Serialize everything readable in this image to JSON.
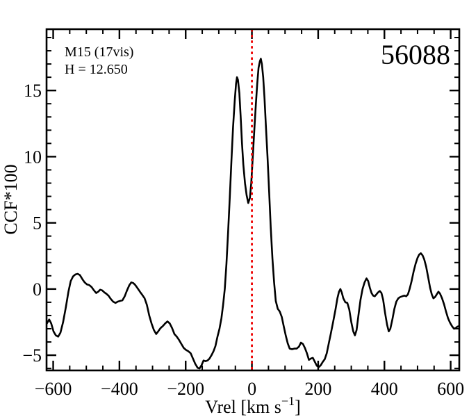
{
  "chart_data": {
    "type": "line",
    "title": "56088",
    "annotations": [
      "M15 (17vis)",
      "H = 12.650"
    ],
    "xlabel": {
      "main": "Vrel [km s",
      "sup": "−1",
      "end": "]"
    },
    "ylabel": "CCF*100",
    "x_range": [
      -620,
      626
    ],
    "y_range": [
      -6.15,
      19.63
    ],
    "x_major_ticks": [
      -600,
      -400,
      -200,
      0,
      200,
      400,
      600
    ],
    "x_tick_labels": [
      "−600",
      "−400",
      "−200",
      "0",
      "200",
      "400",
      "600"
    ],
    "x_minor_step": 50,
    "y_major_ticks": [
      -5,
      0,
      5,
      10,
      15
    ],
    "y_tick_labels": [
      "−5",
      "0",
      "5",
      "10",
      "15"
    ],
    "y_minor_step": 1,
    "grid": false,
    "legend": "none",
    "ref_line": {
      "x": 0,
      "style": "dotted",
      "color": "#ee0000"
    },
    "colors": {
      "curve": "#000000",
      "frame": "#000000",
      "background": "#ffffff"
    },
    "series": [
      {
        "name": "ccf",
        "points": [
          [
            -619,
            -2.6
          ],
          [
            -612,
            -2.3
          ],
          [
            -606,
            -2.6
          ],
          [
            -599,
            -3.2
          ],
          [
            -592,
            -3.5
          ],
          [
            -585,
            -3.6
          ],
          [
            -578,
            -3.3
          ],
          [
            -570,
            -2.5
          ],
          [
            -562,
            -1.4
          ],
          [
            -554,
            -0.2
          ],
          [
            -547,
            0.6
          ],
          [
            -540,
            0.95
          ],
          [
            -533,
            1.1
          ],
          [
            -526,
            1.15
          ],
          [
            -519,
            1.05
          ],
          [
            -512,
            0.75
          ],
          [
            -505,
            0.5
          ],
          [
            -498,
            0.35
          ],
          [
            -491,
            0.3
          ],
          [
            -484,
            0.15
          ],
          [
            -477,
            -0.1
          ],
          [
            -470,
            -0.3
          ],
          [
            -464,
            -0.2
          ],
          [
            -458,
            -0.05
          ],
          [
            -452,
            -0.1
          ],
          [
            -446,
            -0.25
          ],
          [
            -440,
            -0.35
          ],
          [
            -433,
            -0.5
          ],
          [
            -426,
            -0.75
          ],
          [
            -419,
            -0.95
          ],
          [
            -412,
            -1.05
          ],
          [
            -405,
            -0.95
          ],
          [
            -398,
            -0.9
          ],
          [
            -391,
            -0.85
          ],
          [
            -384,
            -0.55
          ],
          [
            -377,
            -0.1
          ],
          [
            -370,
            0.3
          ],
          [
            -364,
            0.5
          ],
          [
            -358,
            0.45
          ],
          [
            -352,
            0.3
          ],
          [
            -345,
            0.05
          ],
          [
            -338,
            -0.2
          ],
          [
            -331,
            -0.45
          ],
          [
            -324,
            -0.7
          ],
          [
            -317,
            -1.2
          ],
          [
            -310,
            -2.0
          ],
          [
            -303,
            -2.6
          ],
          [
            -296,
            -3.1
          ],
          [
            -289,
            -3.4
          ],
          [
            -283,
            -3.2
          ],
          [
            -276,
            -2.95
          ],
          [
            -269,
            -2.8
          ],
          [
            -262,
            -2.6
          ],
          [
            -255,
            -2.45
          ],
          [
            -248,
            -2.6
          ],
          [
            -241,
            -2.95
          ],
          [
            -234,
            -3.4
          ],
          [
            -227,
            -3.6
          ],
          [
            -220,
            -3.85
          ],
          [
            -213,
            -4.15
          ],
          [
            -206,
            -4.45
          ],
          [
            -199,
            -4.6
          ],
          [
            -192,
            -4.7
          ],
          [
            -185,
            -4.85
          ],
          [
            -178,
            -5.25
          ],
          [
            -171,
            -5.65
          ],
          [
            -164,
            -5.95
          ],
          [
            -158,
            -6.0
          ],
          [
            -152,
            -5.75
          ],
          [
            -146,
            -5.4
          ],
          [
            -140,
            -5.45
          ],
          [
            -134,
            -5.4
          ],
          [
            -128,
            -5.25
          ],
          [
            -122,
            -5.0
          ],
          [
            -116,
            -4.7
          ],
          [
            -110,
            -4.3
          ],
          [
            -104,
            -3.6
          ],
          [
            -98,
            -3.0
          ],
          [
            -92,
            -2.2
          ],
          [
            -87,
            -1.2
          ],
          [
            -82,
            0.0
          ],
          [
            -77,
            1.9
          ],
          [
            -72,
            4.2
          ],
          [
            -67,
            6.8
          ],
          [
            -62,
            9.6
          ],
          [
            -57,
            12.2
          ],
          [
            -52,
            14.2
          ],
          [
            -48,
            15.5
          ],
          [
            -45,
            16.0
          ],
          [
            -42,
            15.8
          ],
          [
            -38,
            14.8
          ],
          [
            -34,
            13.0
          ],
          [
            -30,
            11.0
          ],
          [
            -26,
            9.4
          ],
          [
            -21,
            8.0
          ],
          [
            -16,
            7.1
          ],
          [
            -11,
            6.5
          ],
          [
            -6,
            6.9
          ],
          [
            -2,
            8.0
          ],
          [
            2,
            9.7
          ],
          [
            7,
            11.9
          ],
          [
            12,
            14.0
          ],
          [
            16,
            15.5
          ],
          [
            20,
            16.7
          ],
          [
            24,
            17.2
          ],
          [
            27,
            17.4
          ],
          [
            30,
            17.0
          ],
          [
            34,
            16.0
          ],
          [
            38,
            14.4
          ],
          [
            42,
            12.4
          ],
          [
            47,
            10.0
          ],
          [
            52,
            7.3
          ],
          [
            57,
            4.6
          ],
          [
            62,
            2.3
          ],
          [
            67,
            0.5
          ],
          [
            72,
            -0.9
          ],
          [
            78,
            -1.5
          ],
          [
            84,
            -1.7
          ],
          [
            90,
            -2.1
          ],
          [
            96,
            -2.8
          ],
          [
            102,
            -3.5
          ],
          [
            108,
            -4.1
          ],
          [
            114,
            -4.5
          ],
          [
            121,
            -4.55
          ],
          [
            128,
            -4.5
          ],
          [
            135,
            -4.5
          ],
          [
            142,
            -4.35
          ],
          [
            148,
            -4.05
          ],
          [
            154,
            -4.15
          ],
          [
            160,
            -4.45
          ],
          [
            166,
            -4.85
          ],
          [
            172,
            -5.35
          ],
          [
            178,
            -5.25
          ],
          [
            184,
            -5.2
          ],
          [
            190,
            -5.5
          ],
          [
            196,
            -5.8
          ],
          [
            202,
            -5.9
          ],
          [
            208,
            -5.75
          ],
          [
            214,
            -5.5
          ],
          [
            220,
            -5.3
          ],
          [
            226,
            -4.85
          ],
          [
            232,
            -4.1
          ],
          [
            238,
            -3.4
          ],
          [
            245,
            -2.5
          ],
          [
            252,
            -1.6
          ],
          [
            258,
            -0.7
          ],
          [
            263,
            -0.2
          ],
          [
            267,
            0.0
          ],
          [
            271,
            -0.25
          ],
          [
            276,
            -0.7
          ],
          [
            282,
            -1.0
          ],
          [
            288,
            -1.05
          ],
          [
            294,
            -1.55
          ],
          [
            300,
            -2.5
          ],
          [
            306,
            -3.2
          ],
          [
            311,
            -3.5
          ],
          [
            316,
            -3.1
          ],
          [
            322,
            -1.9
          ],
          [
            328,
            -0.8
          ],
          [
            334,
            0.0
          ],
          [
            340,
            0.5
          ],
          [
            346,
            0.8
          ],
          [
            351,
            0.6
          ],
          [
            356,
            0.1
          ],
          [
            361,
            -0.3
          ],
          [
            366,
            -0.5
          ],
          [
            371,
            -0.55
          ],
          [
            376,
            -0.4
          ],
          [
            381,
            -0.25
          ],
          [
            386,
            -0.15
          ],
          [
            391,
            -0.3
          ],
          [
            396,
            -0.8
          ],
          [
            402,
            -1.8
          ],
          [
            408,
            -2.7
          ],
          [
            413,
            -3.2
          ],
          [
            418,
            -3.0
          ],
          [
            424,
            -2.3
          ],
          [
            430,
            -1.5
          ],
          [
            436,
            -0.95
          ],
          [
            442,
            -0.7
          ],
          [
            448,
            -0.6
          ],
          [
            454,
            -0.55
          ],
          [
            460,
            -0.5
          ],
          [
            466,
            -0.55
          ],
          [
            471,
            -0.4
          ],
          [
            476,
            0.0
          ],
          [
            482,
            0.6
          ],
          [
            488,
            1.3
          ],
          [
            494,
            1.9
          ],
          [
            500,
            2.35
          ],
          [
            505,
            2.6
          ],
          [
            510,
            2.7
          ],
          [
            515,
            2.55
          ],
          [
            520,
            2.25
          ],
          [
            526,
            1.7
          ],
          [
            532,
            0.9
          ],
          [
            538,
            0.1
          ],
          [
            543,
            -0.4
          ],
          [
            548,
            -0.7
          ],
          [
            553,
            -0.6
          ],
          [
            558,
            -0.4
          ],
          [
            563,
            -0.2
          ],
          [
            568,
            -0.35
          ],
          [
            574,
            -0.7
          ],
          [
            580,
            -1.15
          ],
          [
            586,
            -1.7
          ],
          [
            592,
            -2.2
          ],
          [
            598,
            -2.55
          ],
          [
            604,
            -2.8
          ],
          [
            610,
            -3.0
          ],
          [
            615,
            -2.95
          ],
          [
            620,
            -2.85
          ],
          [
            625,
            -2.8
          ]
        ]
      }
    ]
  }
}
